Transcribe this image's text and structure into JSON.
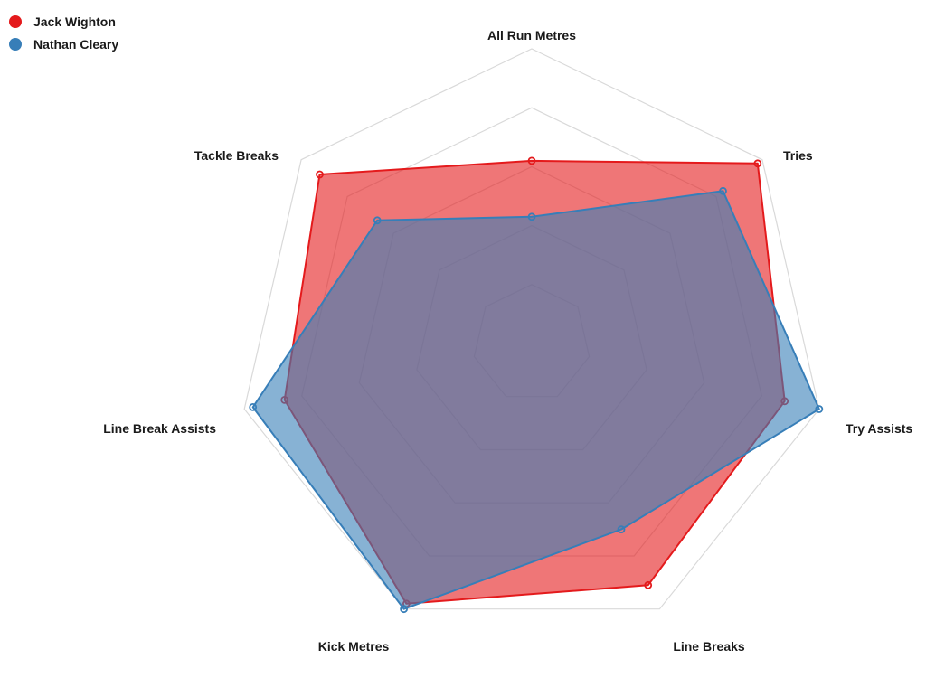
{
  "chart_data": {
    "type": "radar",
    "axes": [
      "All Run Metres",
      "Tries",
      "Try Assists",
      "Line Breaks",
      "Kick Metres",
      "Line Break Assists",
      "Tackle Breaks"
    ],
    "range": [
      0,
      1
    ],
    "rings": 5,
    "grid": true,
    "legend_position": "top-left",
    "series": [
      {
        "name": "Jack Wighton",
        "color": "#e41a1c",
        "fill": "#e41a1c",
        "values": [
          0.62,
          0.98,
          0.88,
          0.91,
          0.98,
          0.86,
          0.92
        ]
      },
      {
        "name": "Nathan Cleary",
        "color": "#377eb8",
        "fill": "#377eb8",
        "values": [
          0.43,
          0.83,
          1.0,
          0.7,
          1.0,
          0.97,
          0.67
        ]
      }
    ]
  }
}
